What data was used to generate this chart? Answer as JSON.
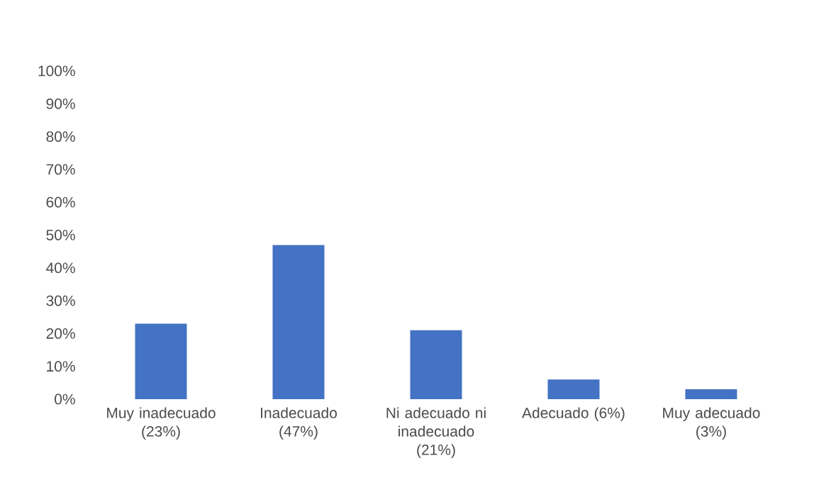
{
  "chart_data": {
    "type": "bar",
    "categories": [
      "Muy inadecuado (23%)",
      "Inadecuado (47%)",
      "Ni adecuado ni inadecuado (21%)",
      "Adecuado (6%)",
      "Muy adecuado (3%)"
    ],
    "values": [
      23,
      47,
      21,
      6,
      3
    ],
    "color": "#4472c4",
    "ylim": [
      0,
      100
    ],
    "yticks": [
      {
        "value": 0,
        "label": "0%"
      },
      {
        "value": 10,
        "label": "10%"
      },
      {
        "value": 20,
        "label": "20%"
      },
      {
        "value": 30,
        "label": "30%"
      },
      {
        "value": 40,
        "label": "40%"
      },
      {
        "value": 50,
        "label": "50%"
      },
      {
        "value": 60,
        "label": "60%"
      },
      {
        "value": 70,
        "label": "70%"
      },
      {
        "value": 80,
        "label": "80%"
      },
      {
        "value": 90,
        "label": "90%"
      },
      {
        "value": 100,
        "label": "100%"
      }
    ],
    "grid": false
  }
}
